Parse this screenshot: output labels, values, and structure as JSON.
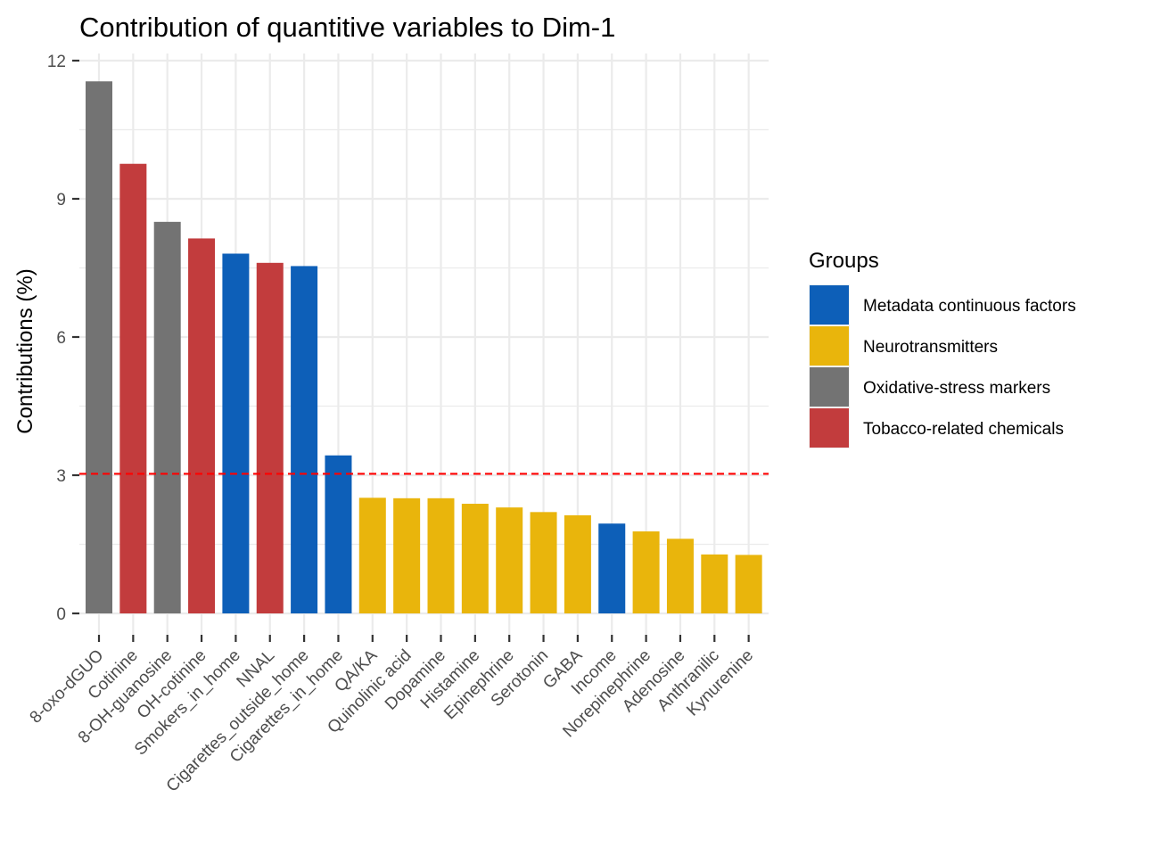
{
  "chart_data": {
    "type": "bar",
    "title": "Contribution of quantitive variables to Dim-1",
    "ylabel": "Contributions (%)",
    "xlabel": "",
    "ylim": [
      0,
      12
    ],
    "yticks": [
      0,
      3,
      6,
      9,
      12
    ],
    "grid": true,
    "reference_line": {
      "value": 3.03,
      "color": "#ff0000",
      "style": "dashed"
    },
    "legend": {
      "title": "Groups",
      "position": "right",
      "entries": [
        {
          "label": "Metadata continuous factors",
          "color": "#0d5fb8"
        },
        {
          "label": "Neurotransmitters",
          "color": "#e9b50c"
        },
        {
          "label": "Oxidative-stress markers",
          "color": "#737373"
        },
        {
          "label": "Tobacco-related chemicals",
          "color": "#c23c3d"
        }
      ]
    },
    "bars": [
      {
        "category": "8-oxo-dGUO",
        "value": 11.55,
        "group": 2
      },
      {
        "category": "Cotinine",
        "value": 9.76,
        "group": 3
      },
      {
        "category": "8-OH-guanosine",
        "value": 8.5,
        "group": 2
      },
      {
        "category": "OH-cotinine",
        "value": 8.14,
        "group": 3
      },
      {
        "category": "Smokers_in_home",
        "value": 7.81,
        "group": 0
      },
      {
        "category": "NNAL",
        "value": 7.61,
        "group": 3
      },
      {
        "category": "Cigarettes_outside_home",
        "value": 7.54,
        "group": 0
      },
      {
        "category": "Cigarettes_in_home",
        "value": 3.43,
        "group": 0
      },
      {
        "category": "QA/KA",
        "value": 2.51,
        "group": 1
      },
      {
        "category": "Quinolinic acid",
        "value": 2.5,
        "group": 1
      },
      {
        "category": "Dopamine",
        "value": 2.5,
        "group": 1
      },
      {
        "category": "Histamine",
        "value": 2.38,
        "group": 1
      },
      {
        "category": "Epinephrine",
        "value": 2.3,
        "group": 1
      },
      {
        "category": "Serotonin",
        "value": 2.2,
        "group": 1
      },
      {
        "category": "GABA",
        "value": 2.13,
        "group": 1
      },
      {
        "category": "Income",
        "value": 1.95,
        "group": 0
      },
      {
        "category": "Norepinephrine",
        "value": 1.78,
        "group": 1
      },
      {
        "category": "Adenosine",
        "value": 1.62,
        "group": 1
      },
      {
        "category": "Anthranilic",
        "value": 1.28,
        "group": 1
      },
      {
        "category": "Kynurenine",
        "value": 1.27,
        "group": 1
      }
    ]
  }
}
